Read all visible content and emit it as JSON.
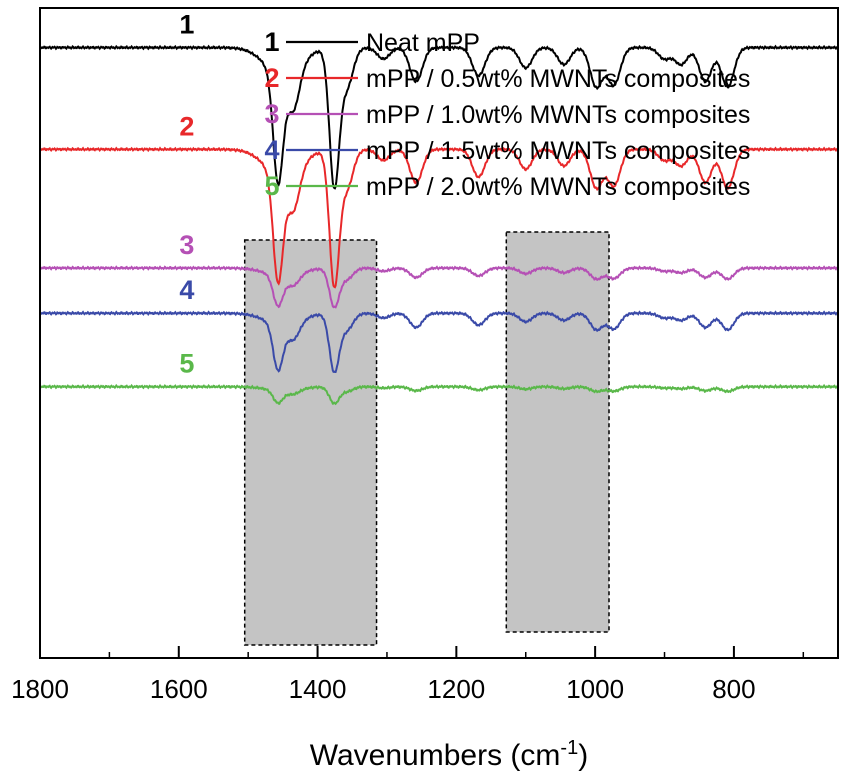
{
  "chart_data": {
    "type": "line",
    "title": "",
    "xlabel": "Wavenumbers (cm",
    "xlabel_sup": "-1",
    "xlabel_close": ")",
    "ylabel": "",
    "xlim": [
      1800,
      650
    ],
    "x_reversed": true,
    "xticks": [
      1800,
      1600,
      1400,
      1200,
      1000,
      800
    ],
    "xtick_labels": [
      "1800",
      "1600",
      "1400",
      "1200",
      "1000",
      "800"
    ],
    "ylim": [
      -5.4,
      0.35
    ],
    "grid": false,
    "legend_position": "top-right",
    "shaded_regions": [
      {
        "x_from": 1505,
        "x_to": 1315
      },
      {
        "x_from": 1128,
        "x_to": 980
      }
    ],
    "peaks": [
      {
        "x": 1457,
        "depth": 0.95
      },
      {
        "x": 1435,
        "depth": 0.35
      },
      {
        "x": 1376,
        "depth": 1.2
      },
      {
        "x": 1358,
        "depth": 0.35
      },
      {
        "x": 1305,
        "depth": 0.1
      },
      {
        "x": 1258,
        "depth": 0.3
      },
      {
        "x": 1168,
        "depth": 0.25
      },
      {
        "x": 1100,
        "depth": 0.18
      },
      {
        "x": 1045,
        "depth": 0.15
      },
      {
        "x": 998,
        "depth": 0.35
      },
      {
        "x": 973,
        "depth": 0.33
      },
      {
        "x": 900,
        "depth": 0.1
      },
      {
        "x": 876,
        "depth": 0.15
      },
      {
        "x": 841,
        "depth": 0.3
      },
      {
        "x": 809,
        "depth": 0.35
      }
    ],
    "series": [
      {
        "id": "1",
        "name": "Neat mPP",
        "color": "#000000",
        "baseline": 0.0,
        "scale": 1.0
      },
      {
        "id": "2",
        "name": "mPP / 0.5wt% MWNTs composites",
        "color": "#e8282a",
        "baseline": -0.9,
        "scale": 0.98
      },
      {
        "id": "3",
        "name": "mPP / 1.0wt% MWNTs composites",
        "color": "#b550b5",
        "baseline": -1.95,
        "scale": 0.28
      },
      {
        "id": "4",
        "name": "mPP / 1.5wt% MWNTs composites",
        "color": "#3a4aa8",
        "baseline": -2.35,
        "scale": 0.42
      },
      {
        "id": "5",
        "name": "mPP / 2.0wt% MWNTs composites",
        "color": "#5ab84a",
        "baseline": -3.0,
        "scale": 0.12
      }
    ]
  }
}
